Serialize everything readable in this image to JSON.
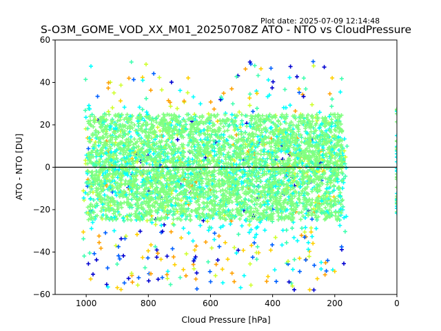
{
  "plot_date": "Plot date: 2025-07-09 12:14:48",
  "chart_data": {
    "type": "scatter",
    "title": "S-O3M_GOME_VOD_XX_M01_20250708Z ATO - NTO vs CloudPressure",
    "xlabel": "Cloud Pressure [hPa]",
    "ylabel": "ATO - NTO [DU]",
    "xlim": [
      1100,
      0
    ],
    "ylim": [
      -60,
      60
    ],
    "x_inverted": true,
    "xticks": [
      1000,
      800,
      600,
      400,
      200,
      0
    ],
    "yticks": [
      -60,
      -40,
      -20,
      0,
      20,
      40,
      60
    ],
    "reference_line_y": 0,
    "marker": "+",
    "colormap": "jet",
    "grid": false,
    "legend": "none",
    "point_cloud": {
      "x_range": [
        160,
        1010
      ],
      "dense_core_y_range": [
        -25,
        25
      ],
      "outlier_y_range": [
        -58,
        54
      ],
      "dominant_color": "#80ff80",
      "secondary_colors": [
        "#00ffff",
        "#40ffb0",
        "#d0ff30",
        "#ffd000",
        "#ffa000",
        "#0000d0",
        "#0060ff"
      ]
    },
    "isolated_points_x0": {
      "x": 0,
      "y_range": [
        -22,
        28
      ]
    }
  }
}
